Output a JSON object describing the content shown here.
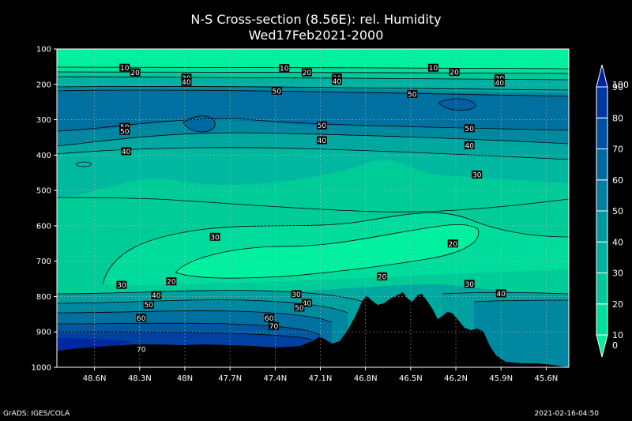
{
  "title": "N-S Cross-section (8.56E): rel. Humidity",
  "subtitle": "Wed17Feb2021-2000",
  "footer_left": "GrADS: IGES/COLA",
  "footer_right": "2021-02-16-04:50",
  "chart_data": {
    "type": "contour",
    "x_ticks": [
      "48.6N",
      "48.3N",
      "48N",
      "47.7N",
      "47.4N",
      "47.1N",
      "46.8N",
      "46.5N",
      "46.2N",
      "45.9N",
      "45.6N"
    ],
    "x_tick_values": [
      48.6,
      48.3,
      48.0,
      47.7,
      47.4,
      47.1,
      46.8,
      46.5,
      46.2,
      45.9,
      45.6
    ],
    "xlim": [
      48.85,
      45.45
    ],
    "y_ticks": [
      "100",
      "200",
      "300",
      "400",
      "500",
      "600",
      "700",
      "800",
      "900",
      "1000"
    ],
    "y_tick_values": [
      100,
      200,
      300,
      400,
      500,
      600,
      700,
      800,
      900,
      1000
    ],
    "ylim": [
      100,
      1000
    ],
    "grid": true,
    "colorbar": {
      "levels": [
        0,
        10,
        20,
        30,
        40,
        50,
        60,
        70,
        80,
        90,
        100
      ],
      "labels": [
        "0",
        "10",
        "20",
        "30",
        "40",
        "50",
        "60",
        "70",
        "80",
        "90",
        "100"
      ],
      "colors": [
        "#00f0a0",
        "#00e09c",
        "#00c898",
        "#00b0a0",
        "#0098a0",
        "#0080a0",
        "#0068a0",
        "#0050a0",
        "#0038a0",
        "#0020a0"
      ]
    },
    "contour_labels": [
      {
        "text": "10",
        "lat": 48.4,
        "p": 153
      },
      {
        "text": "20",
        "lat": 48.33,
        "p": 166
      },
      {
        "text": "30",
        "lat": 47.99,
        "p": 181
      },
      {
        "text": "40",
        "lat": 47.99,
        "p": 193
      },
      {
        "text": "50",
        "lat": 47.39,
        "p": 218
      },
      {
        "text": "10",
        "lat": 47.34,
        "p": 154
      },
      {
        "text": "20",
        "lat": 47.19,
        "p": 166
      },
      {
        "text": "30",
        "lat": 46.99,
        "p": 181
      },
      {
        "text": "40",
        "lat": 46.99,
        "p": 190
      },
      {
        "text": "10",
        "lat": 46.35,
        "p": 153
      },
      {
        "text": "20",
        "lat": 46.21,
        "p": 165
      },
      {
        "text": "30",
        "lat": 45.91,
        "p": 183
      },
      {
        "text": "40",
        "lat": 45.91,
        "p": 195
      },
      {
        "text": "50",
        "lat": 46.49,
        "p": 227
      },
      {
        "text": "50",
        "lat": 48.4,
        "p": 320
      },
      {
        "text": "50",
        "lat": 48.4,
        "p": 332
      },
      {
        "text": "40",
        "lat": 48.39,
        "p": 389
      },
      {
        "text": "50",
        "lat": 47.09,
        "p": 316
      },
      {
        "text": "40",
        "lat": 47.09,
        "p": 358
      },
      {
        "text": "50",
        "lat": 46.11,
        "p": 324
      },
      {
        "text": "40",
        "lat": 46.11,
        "p": 372
      },
      {
        "text": "30",
        "lat": 46.06,
        "p": 455
      },
      {
        "text": "30",
        "lat": 47.8,
        "p": 631
      },
      {
        "text": "20",
        "lat": 46.22,
        "p": 650
      },
      {
        "text": "20",
        "lat": 46.69,
        "p": 743
      },
      {
        "text": "20",
        "lat": 48.09,
        "p": 757
      },
      {
        "text": "30",
        "lat": 48.42,
        "p": 767
      },
      {
        "text": "40",
        "lat": 48.19,
        "p": 796
      },
      {
        "text": "30",
        "lat": 47.26,
        "p": 793
      },
      {
        "text": "50",
        "lat": 48.24,
        "p": 823
      },
      {
        "text": "40",
        "lat": 47.19,
        "p": 818
      },
      {
        "text": "50",
        "lat": 47.24,
        "p": 831
      },
      {
        "text": "30",
        "lat": 46.11,
        "p": 764
      },
      {
        "text": "40",
        "lat": 45.9,
        "p": 791
      },
      {
        "text": "60",
        "lat": 48.29,
        "p": 860
      },
      {
        "text": "60",
        "lat": 47.44,
        "p": 860
      },
      {
        "text": "70",
        "lat": 47.41,
        "p": 883
      },
      {
        "text": "70",
        "lat": 48.29,
        "p": 949
      }
    ]
  }
}
